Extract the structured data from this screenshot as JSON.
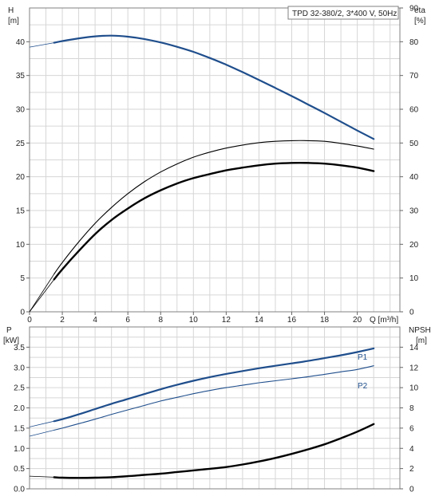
{
  "chart_data": [
    {
      "type": "line",
      "title": "",
      "legend_box": "TPD 32-380/2, 3*400 V, 50Hz",
      "xlabel": "Q [m³/h]",
      "x_ticks": [
        "0",
        "2",
        "4",
        "6",
        "8",
        "10",
        "12",
        "14",
        "16",
        "18",
        "20"
      ],
      "xlim": [
        0,
        22.6
      ],
      "ylabel_left_name": "H",
      "ylabel_left_unit": "[m]",
      "ylim_left": [
        0,
        45
      ],
      "y_ticks_left": [
        "0",
        "5",
        "10",
        "15",
        "20",
        "25",
        "30",
        "35",
        "40"
      ],
      "ylabel_right_name": "eta",
      "ylabel_right_unit": "[%]",
      "ylim_right": [
        0,
        90
      ],
      "y_ticks_right": [
        "0",
        "10",
        "20",
        "30",
        "40",
        "50",
        "60",
        "70",
        "80",
        "90"
      ],
      "grid": true,
      "series": [
        {
          "axis": "left",
          "color": "#1f4e8c",
          "width": 2.2,
          "extension": {
            "x": [
              0,
              1.5
            ],
            "y": [
              39.2,
              39.85
            ]
          },
          "x": [
            1.5,
            2,
            3,
            4,
            5,
            6,
            7,
            8,
            9,
            10,
            11,
            12,
            13,
            14,
            15,
            16,
            17,
            18,
            19,
            20,
            21
          ],
          "y": [
            39.85,
            40.1,
            40.5,
            40.8,
            40.9,
            40.75,
            40.4,
            39.9,
            39.25,
            38.5,
            37.6,
            36.6,
            35.5,
            34.35,
            33.15,
            31.95,
            30.7,
            29.45,
            28.15,
            26.85,
            25.6
          ]
        },
        {
          "axis": "left",
          "color": "#000000",
          "width": 2.4,
          "extension": {
            "x": [
              0,
              1.5
            ],
            "y": [
              0,
              4.8
            ]
          },
          "x": [
            1.5,
            2,
            3,
            4,
            5,
            6,
            7,
            8,
            9,
            10,
            11,
            12,
            13,
            14,
            15,
            16,
            17,
            18,
            19,
            20,
            21
          ],
          "y": [
            4.8,
            6.3,
            9.0,
            11.5,
            13.6,
            15.3,
            16.8,
            18.0,
            19.0,
            19.8,
            20.4,
            20.95,
            21.35,
            21.7,
            21.95,
            22.05,
            22.05,
            21.95,
            21.7,
            21.35,
            20.85
          ]
        },
        {
          "axis": "left",
          "color": "#000000",
          "width": 1.1,
          "extension": {
            "x": [
              0,
              1.5
            ],
            "y": [
              0,
              5.6
            ]
          },
          "x": [
            1.5,
            2,
            3,
            4,
            5,
            6,
            7,
            8,
            9,
            10,
            11,
            12,
            13,
            14,
            15,
            16,
            17,
            18,
            19,
            20,
            21
          ],
          "y": [
            5.6,
            7.3,
            10.35,
            13.1,
            15.45,
            17.5,
            19.25,
            20.7,
            21.9,
            22.9,
            23.65,
            24.25,
            24.7,
            25.05,
            25.25,
            25.35,
            25.35,
            25.25,
            24.95,
            24.55,
            24.1
          ]
        }
      ]
    },
    {
      "type": "line",
      "title": "",
      "xlim": [
        0,
        22.6
      ],
      "ylabel_left_name": "P",
      "ylabel_left_unit": "[kW]",
      "ylim_left": [
        0,
        4
      ],
      "y_ticks_left": [
        "0.0",
        "0.5",
        "1.0",
        "1.5",
        "2.0",
        "2.5",
        "3.0",
        "3.5"
      ],
      "ylabel_right_name": "NPSH",
      "ylabel_right_unit": "[m]",
      "ylim_right": [
        0,
        16
      ],
      "y_ticks_right": [
        "0",
        "2",
        "4",
        "6",
        "8",
        "10",
        "12",
        "14"
      ],
      "grid": true,
      "series": [
        {
          "name": "P1",
          "axis": "left",
          "color": "#1f4e8c",
          "width": 2.2,
          "extension": {
            "x": [
              0,
              1.5
            ],
            "y": [
              1.53,
              1.67
            ]
          },
          "x": [
            1.5,
            2,
            3,
            4,
            5,
            6,
            7,
            8,
            9,
            10,
            11,
            12,
            13,
            14,
            15,
            16,
            17,
            18,
            19,
            20,
            21
          ],
          "y": [
            1.67,
            1.72,
            1.84,
            1.97,
            2.1,
            2.22,
            2.34,
            2.46,
            2.57,
            2.67,
            2.76,
            2.84,
            2.91,
            2.98,
            3.04,
            3.1,
            3.16,
            3.23,
            3.3,
            3.38,
            3.47
          ]
        },
        {
          "name": "P2",
          "axis": "left",
          "color": "#1f4e8c",
          "width": 1.1,
          "extension": {
            "x": [
              0,
              1.5
            ],
            "y": [
              1.3,
              1.45
            ]
          },
          "x": [
            1.5,
            2,
            3,
            4,
            5,
            6,
            7,
            8,
            9,
            10,
            11,
            12,
            13,
            14,
            15,
            16,
            17,
            18,
            19,
            20,
            21
          ],
          "y": [
            1.45,
            1.5,
            1.61,
            1.72,
            1.84,
            1.95,
            2.06,
            2.17,
            2.26,
            2.35,
            2.43,
            2.5,
            2.56,
            2.62,
            2.67,
            2.72,
            2.77,
            2.83,
            2.89,
            2.95,
            3.04
          ]
        },
        {
          "axis": "right",
          "color": "#000000",
          "width": 2.4,
          "extension": {
            "x": [
              0,
              1.5
            ],
            "y": [
              1.25,
              1.15
            ]
          },
          "x": [
            1.5,
            2,
            3,
            4,
            5,
            6,
            7,
            8,
            9,
            10,
            11,
            12,
            13,
            14,
            15,
            16,
            17,
            18,
            19,
            20,
            21
          ],
          "y": [
            1.15,
            1.1,
            1.08,
            1.1,
            1.15,
            1.25,
            1.38,
            1.5,
            1.66,
            1.82,
            1.98,
            2.15,
            2.4,
            2.7,
            3.05,
            3.45,
            3.9,
            4.4,
            5.0,
            5.65,
            6.4
          ]
        }
      ]
    }
  ]
}
